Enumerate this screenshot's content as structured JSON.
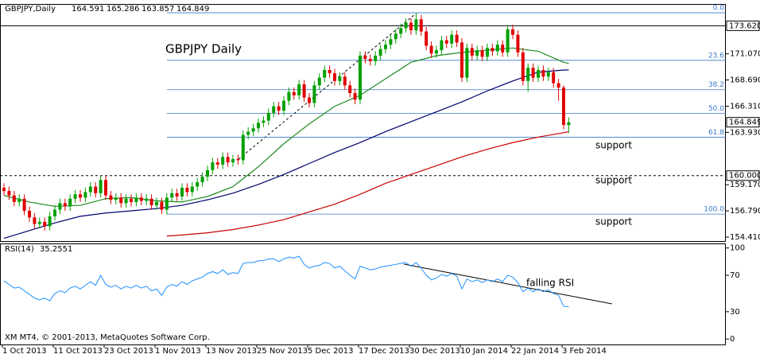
{
  "chart_data": {
    "type": "candlestick",
    "title": "GBPJPY Daily",
    "symbol": "GBPJPY,Daily",
    "footer": "XM MT4, © 2001-2013, MetaQuotes Software Corp.",
    "categories": [
      "1 Oct 2013",
      null,
      null,
      null,
      null,
      null,
      null,
      null,
      null,
      null,
      "11 Oct 2013",
      null,
      null,
      null,
      null,
      null,
      null,
      null,
      null,
      null,
      "23 Oct 2013",
      null,
      null,
      null,
      null,
      null,
      null,
      null,
      null,
      null,
      "1 Nov 2013",
      null,
      null,
      null,
      null,
      null,
      null,
      null,
      null,
      null,
      "13 Nov 2013",
      null,
      null,
      null,
      null,
      null,
      null,
      null,
      null,
      null,
      "25 Nov 2013",
      null,
      null,
      null,
      null,
      null,
      null,
      null,
      null,
      null,
      "5 Dec 2013",
      null,
      null,
      null,
      null,
      null,
      null,
      null,
      null,
      null,
      "17 Dec 2013",
      null,
      null,
      null,
      null,
      null,
      null,
      null,
      null,
      null,
      "30 Dec 2013",
      null,
      null,
      null,
      null,
      null,
      null,
      null,
      null,
      null,
      "10 Jan 2014",
      null,
      null,
      null,
      null,
      null,
      null,
      null,
      null,
      null,
      "22 Jan 2014",
      null,
      null,
      null,
      null,
      null,
      null,
      null,
      null,
      null,
      "3 Feb 2014",
      null
    ],
    "open": [
      158.9,
      158.6,
      158.2,
      157.6,
      157.9,
      156.8,
      156.2,
      155.6,
      155.8,
      155.4,
      156.3,
      156.9,
      157.5,
      157.2,
      157.9,
      158.3,
      158.0,
      158.5,
      159.0,
      158.4,
      159.6,
      158.2,
      157.8,
      158.0,
      157.5,
      157.9,
      157.6,
      158.0,
      157.7,
      157.9,
      157.3,
      157.6,
      156.9,
      158.0,
      158.4,
      158.1,
      158.9,
      158.5,
      159.0,
      159.4,
      159.9,
      160.5,
      161.2,
      161.0,
      161.7,
      161.2,
      161.5,
      161.4,
      163.7,
      164.0,
      164.3,
      164.8,
      165.0,
      165.7,
      166.3,
      165.9,
      166.8,
      167.6,
      167.3,
      168.3,
      167.1,
      166.6,
      168.2,
      168.9,
      169.6,
      169.3,
      168.6,
      169.0,
      168.2,
      167.5,
      166.9,
      170.9,
      170.6,
      170.4,
      170.9,
      171.5,
      171.9,
      172.4,
      172.9,
      173.4,
      173.9,
      173.2,
      174.2,
      173.1,
      171.8,
      171.1,
      171.4,
      172.3,
      172.0,
      172.8,
      172.1,
      168.9,
      171.6,
      170.9,
      171.4,
      170.8,
      171.6,
      171.3,
      171.9,
      171.2,
      173.3,
      172.8,
      171.2,
      168.6,
      169.8,
      168.9,
      169.6,
      169.0,
      169.4,
      168.4,
      168.0,
      164.591
    ],
    "high": [
      159.3,
      159.0,
      158.6,
      158.3,
      158.3,
      157.2,
      156.6,
      156.2,
      156.2,
      156.7,
      157.3,
      157.9,
      157.9,
      158.3,
      158.7,
      158.7,
      158.9,
      159.4,
      159.4,
      160.0,
      160.0,
      158.6,
      158.4,
      158.4,
      158.3,
      158.3,
      158.4,
      158.4,
      158.3,
      158.3,
      158.0,
      158.0,
      158.4,
      158.8,
      158.8,
      159.3,
      159.3,
      159.4,
      159.8,
      160.3,
      160.9,
      161.6,
      161.6,
      162.1,
      162.1,
      161.9,
      161.9,
      164.1,
      164.4,
      164.7,
      165.2,
      165.4,
      166.1,
      166.7,
      166.7,
      167.2,
      168.0,
      168.0,
      168.7,
      168.7,
      167.5,
      168.6,
      169.3,
      170.0,
      170.0,
      169.7,
      169.4,
      169.4,
      168.6,
      167.9,
      171.3,
      171.3,
      171.0,
      171.3,
      171.9,
      172.3,
      172.8,
      173.3,
      173.8,
      174.3,
      174.3,
      174.8,
      174.6,
      173.5,
      172.2,
      171.8,
      172.7,
      172.7,
      173.2,
      173.2,
      172.5,
      172.0,
      172.0,
      171.8,
      171.8,
      172.0,
      172.0,
      172.3,
      172.3,
      173.7,
      173.7,
      173.2,
      171.6,
      170.2,
      170.2,
      170.0,
      170.0,
      169.8,
      169.8,
      168.8,
      168.2,
      165.286
    ],
    "low": [
      158.2,
      157.8,
      157.2,
      157.2,
      156.4,
      155.8,
      155.2,
      155.2,
      155.0,
      155.0,
      155.9,
      156.5,
      156.8,
      156.8,
      157.5,
      157.6,
      157.6,
      158.1,
      158.0,
      158.0,
      157.8,
      157.4,
      157.4,
      157.1,
      157.1,
      157.2,
      157.2,
      157.3,
      157.3,
      156.9,
      156.9,
      156.5,
      156.5,
      157.6,
      157.7,
      157.7,
      158.1,
      158.1,
      158.6,
      159.0,
      159.5,
      160.1,
      160.6,
      160.6,
      160.8,
      160.8,
      161.0,
      161.0,
      163.3,
      163.6,
      163.9,
      164.4,
      164.6,
      165.3,
      165.5,
      165.5,
      166.4,
      166.9,
      166.9,
      166.7,
      166.2,
      166.2,
      167.8,
      168.5,
      168.9,
      168.2,
      168.2,
      167.8,
      167.1,
      166.5,
      166.5,
      170.2,
      170.0,
      170.0,
      170.5,
      171.1,
      171.5,
      172.0,
      172.5,
      173.0,
      172.8,
      172.8,
      172.7,
      171.4,
      170.7,
      170.7,
      171.0,
      171.6,
      171.6,
      171.7,
      168.5,
      168.5,
      170.5,
      170.5,
      170.4,
      170.4,
      170.9,
      170.9,
      170.8,
      170.8,
      172.4,
      170.8,
      168.2,
      167.6,
      168.5,
      168.5,
      168.6,
      168.6,
      168.0,
      166.8,
      164.2,
      163.857
    ],
    "close": [
      158.6,
      158.2,
      157.6,
      157.9,
      156.8,
      156.2,
      155.6,
      155.8,
      155.4,
      156.3,
      156.9,
      157.5,
      157.2,
      157.9,
      158.3,
      158.0,
      158.5,
      159.0,
      158.4,
      159.6,
      158.2,
      157.8,
      158.0,
      157.5,
      157.9,
      157.6,
      158.0,
      157.7,
      157.9,
      157.3,
      157.6,
      156.9,
      158.0,
      158.4,
      158.1,
      158.9,
      158.5,
      159.0,
      159.4,
      159.9,
      160.5,
      161.2,
      161.0,
      161.7,
      161.2,
      161.5,
      161.4,
      163.7,
      164.0,
      164.3,
      164.8,
      165.0,
      165.7,
      166.3,
      165.9,
      166.8,
      167.6,
      167.3,
      168.3,
      167.1,
      166.6,
      168.2,
      168.9,
      169.6,
      169.3,
      168.6,
      169.0,
      168.2,
      167.5,
      166.9,
      170.9,
      170.6,
      170.4,
      170.9,
      171.5,
      171.9,
      172.4,
      172.9,
      173.4,
      173.9,
      173.2,
      174.2,
      173.1,
      171.8,
      171.1,
      171.4,
      172.3,
      172.0,
      172.8,
      172.1,
      168.9,
      171.6,
      170.9,
      171.4,
      170.8,
      171.6,
      171.3,
      171.9,
      171.2,
      173.3,
      172.8,
      171.2,
      168.6,
      169.8,
      168.9,
      169.6,
      169.0,
      169.4,
      168.4,
      168.0,
      164.6,
      164.849
    ],
    "up_color": "#00a000",
    "down_color": "#e00000",
    "ylim": [
      154.05,
      175.6
    ],
    "yticks": [
      {
        "value": 171.07,
        "label": "171.070"
      },
      {
        "value": 168.69,
        "label": "168.690"
      },
      {
        "value": 166.31,
        "label": "166.310"
      },
      {
        "value": 163.93,
        "label": "163.930"
      },
      {
        "value": 159.17,
        "label": "159.170"
      },
      {
        "value": 156.79,
        "label": "156.790"
      },
      {
        "value": 154.41,
        "label": "154.410"
      }
    ],
    "moving_averages": [
      {
        "color": "#1f8a1f",
        "x": [
          0,
          5,
          10,
          15,
          20,
          25,
          30,
          35,
          40,
          45,
          50,
          55,
          60,
          65,
          70,
          75,
          80,
          85,
          90,
          95,
          100,
          105,
          110,
          111
        ],
        "values": [
          158.2,
          157.6,
          157.2,
          157.3,
          157.9,
          158.0,
          157.7,
          157.6,
          158.1,
          159.0,
          160.8,
          162.9,
          164.7,
          166.3,
          167.3,
          168.8,
          170.3,
          170.9,
          171.2,
          171.4,
          171.6,
          171.3,
          170.3,
          170.2
        ]
      },
      {
        "color": "#000070",
        "x": [
          0,
          5,
          10,
          15,
          20,
          25,
          30,
          35,
          40,
          45,
          50,
          55,
          60,
          65,
          70,
          75,
          80,
          85,
          90,
          95,
          100,
          105,
          110,
          111
        ],
        "values": [
          154.3,
          155.0,
          155.7,
          156.3,
          156.6,
          156.8,
          157.0,
          157.3,
          157.8,
          158.4,
          159.2,
          160.1,
          161.1,
          162.1,
          163.0,
          164.0,
          164.9,
          165.8,
          166.7,
          167.7,
          168.6,
          169.4,
          169.6,
          169.6
        ]
      },
      {
        "color": "#cc0000",
        "x": [
          32,
          35,
          40,
          45,
          50,
          55,
          60,
          65,
          70,
          75,
          80,
          85,
          90,
          95,
          100,
          105,
          110,
          111
        ],
        "values": [
          154.5,
          154.6,
          154.8,
          155.1,
          155.5,
          156.0,
          156.7,
          157.4,
          158.3,
          159.3,
          160.1,
          160.9,
          161.7,
          162.4,
          163.0,
          163.5,
          163.9,
          164.0
        ]
      }
    ],
    "fibonacci": [
      {
        "label": "0.0",
        "value": 174.8
      },
      {
        "label": "23.6",
        "value": 170.48
      },
      {
        "label": "38.2",
        "value": 167.81
      },
      {
        "label": "50.0",
        "value": 165.65
      },
      {
        "label": "61.8",
        "value": 163.49
      },
      {
        "label": "100.0",
        "value": 156.5
      }
    ],
    "fib_color": "#3a78c9",
    "hlines": [
      {
        "value": 173.62,
        "label": "173.620",
        "style": "solid"
      },
      {
        "value": 160,
        "label": "160.000",
        "style": "dashed"
      }
    ],
    "annotations": [
      "support",
      "support",
      "support",
      "falling RSI"
    ],
    "rsi": {
      "label": "RSI(14)",
      "color": "#1e90ff",
      "ylim": [
        -6,
        105
      ],
      "yticks": [
        100,
        70,
        30,
        0
      ],
      "values": [
        64,
        60,
        56,
        57,
        53,
        49,
        45,
        43,
        45,
        42,
        50,
        53,
        51,
        56,
        58,
        55,
        59,
        63,
        59,
        70,
        60,
        57,
        59,
        55,
        58,
        56,
        59,
        56,
        58,
        53,
        55,
        48,
        57,
        60,
        58,
        63,
        60,
        64,
        66,
        68,
        72,
        74,
        72,
        76,
        71,
        73,
        72,
        83,
        84,
        84,
        86,
        86,
        88,
        88,
        85,
        88,
        90,
        89,
        91,
        82,
        78,
        80,
        81,
        84,
        83,
        78,
        80,
        75,
        70,
        66,
        80,
        78,
        76,
        77,
        79,
        80,
        81,
        82,
        83,
        84,
        80,
        84,
        78,
        70,
        65,
        67,
        71,
        69,
        72,
        69,
        55,
        66,
        63,
        65,
        62,
        65,
        63,
        66,
        63,
        70,
        68,
        62,
        52,
        56,
        52,
        55,
        52,
        54,
        50,
        48,
        36,
        35.2551
      ]
    }
  }
}
